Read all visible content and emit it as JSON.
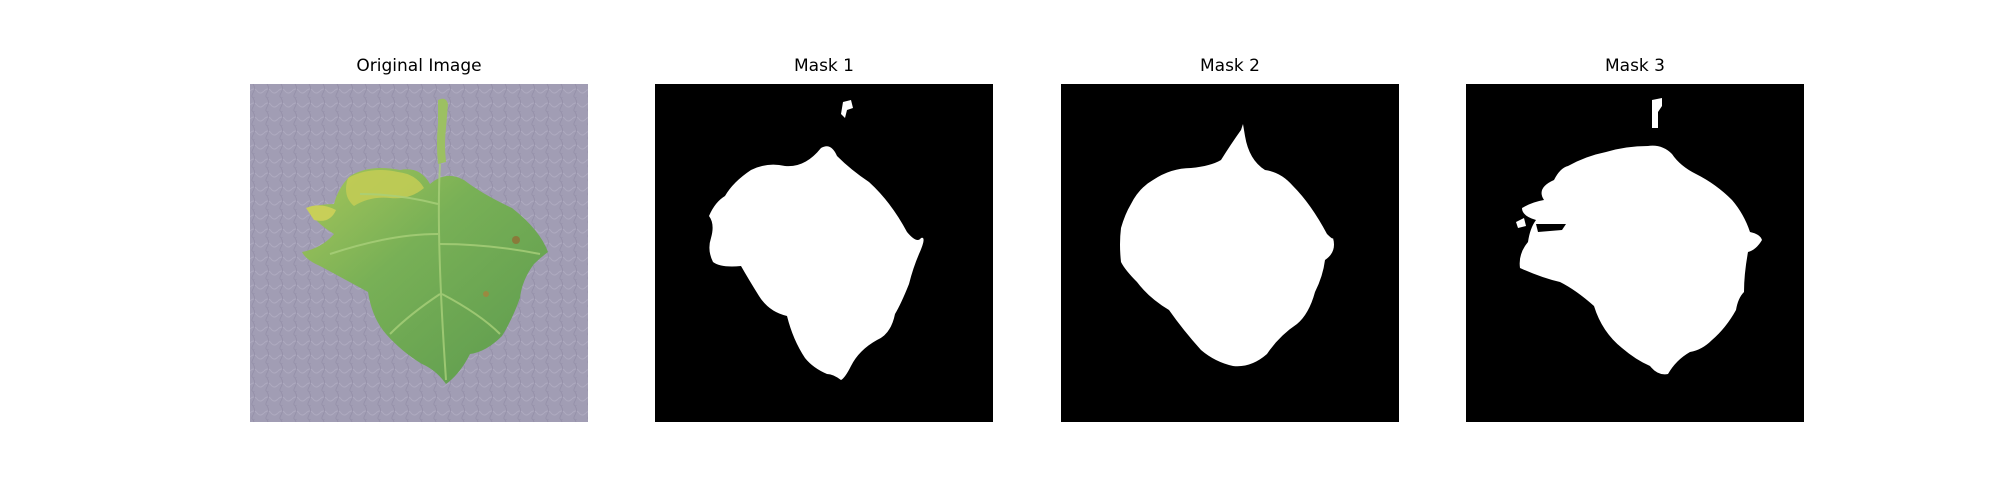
{
  "figure": {
    "panels": [
      {
        "title": "Original Image"
      },
      {
        "title": "Mask 1"
      },
      {
        "title": "Mask 2"
      },
      {
        "title": "Mask 3"
      }
    ]
  },
  "colors": {
    "background": "#a19db4",
    "leaf_dark": "#5e9a4c",
    "leaf_light": "#8fc25e",
    "leaf_yellow": "#c6cc52",
    "mask_bg": "#000000",
    "mask_fg": "#ffffff"
  }
}
